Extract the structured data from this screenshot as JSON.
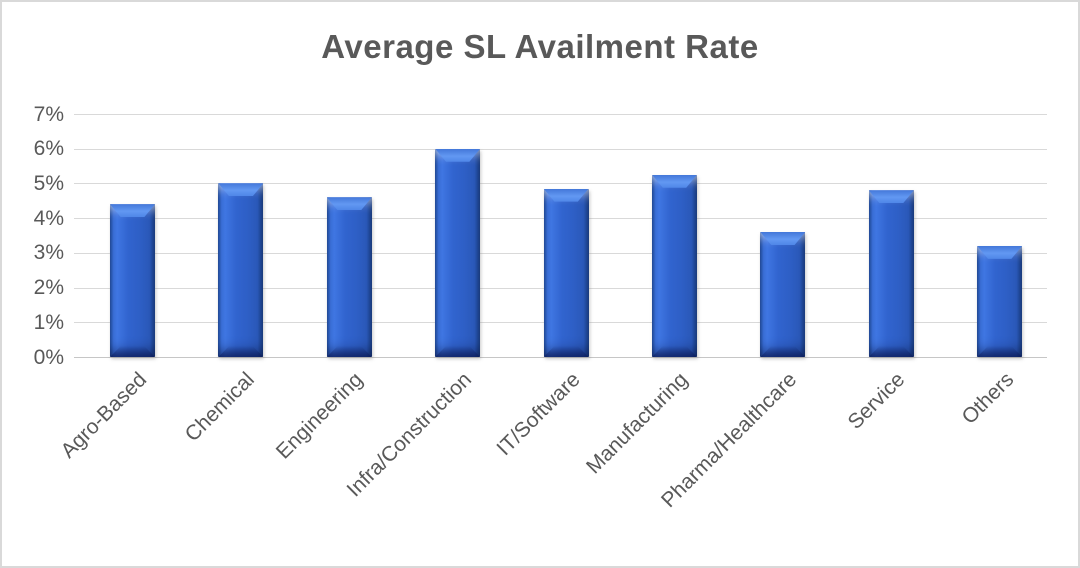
{
  "chart_data": {
    "type": "bar",
    "title": "Average SL Availment Rate",
    "categories": [
      "Agro-Based",
      "Chemical",
      "Engineering",
      "Infra/Construction",
      "IT/Software",
      "Manufacturing",
      "Pharma/Healthcare",
      "Service",
      "Others"
    ],
    "values": [
      4.4,
      5.0,
      4.6,
      6.0,
      4.85,
      5.25,
      3.6,
      4.8,
      3.2
    ],
    "unit": "%",
    "xlabel": "",
    "ylabel": "",
    "ylim": [
      0,
      7
    ],
    "ytick_step": 1,
    "ytick_labels": [
      "0%",
      "1%",
      "2%",
      "3%",
      "4%",
      "5%",
      "6%",
      "7%"
    ],
    "grid": true,
    "legend": "none",
    "x_label_rotation_deg": 45,
    "colors": {
      "bar_fill": "#2e61c8",
      "bar_highlight": "#6298f2",
      "bar_edge_dark": "#1e4896",
      "title_text": "#595959",
      "axis_text": "#595959",
      "gridline": "#d9d9d9",
      "chart_border": "#d9d9d9",
      "background": "#ffffff"
    }
  }
}
